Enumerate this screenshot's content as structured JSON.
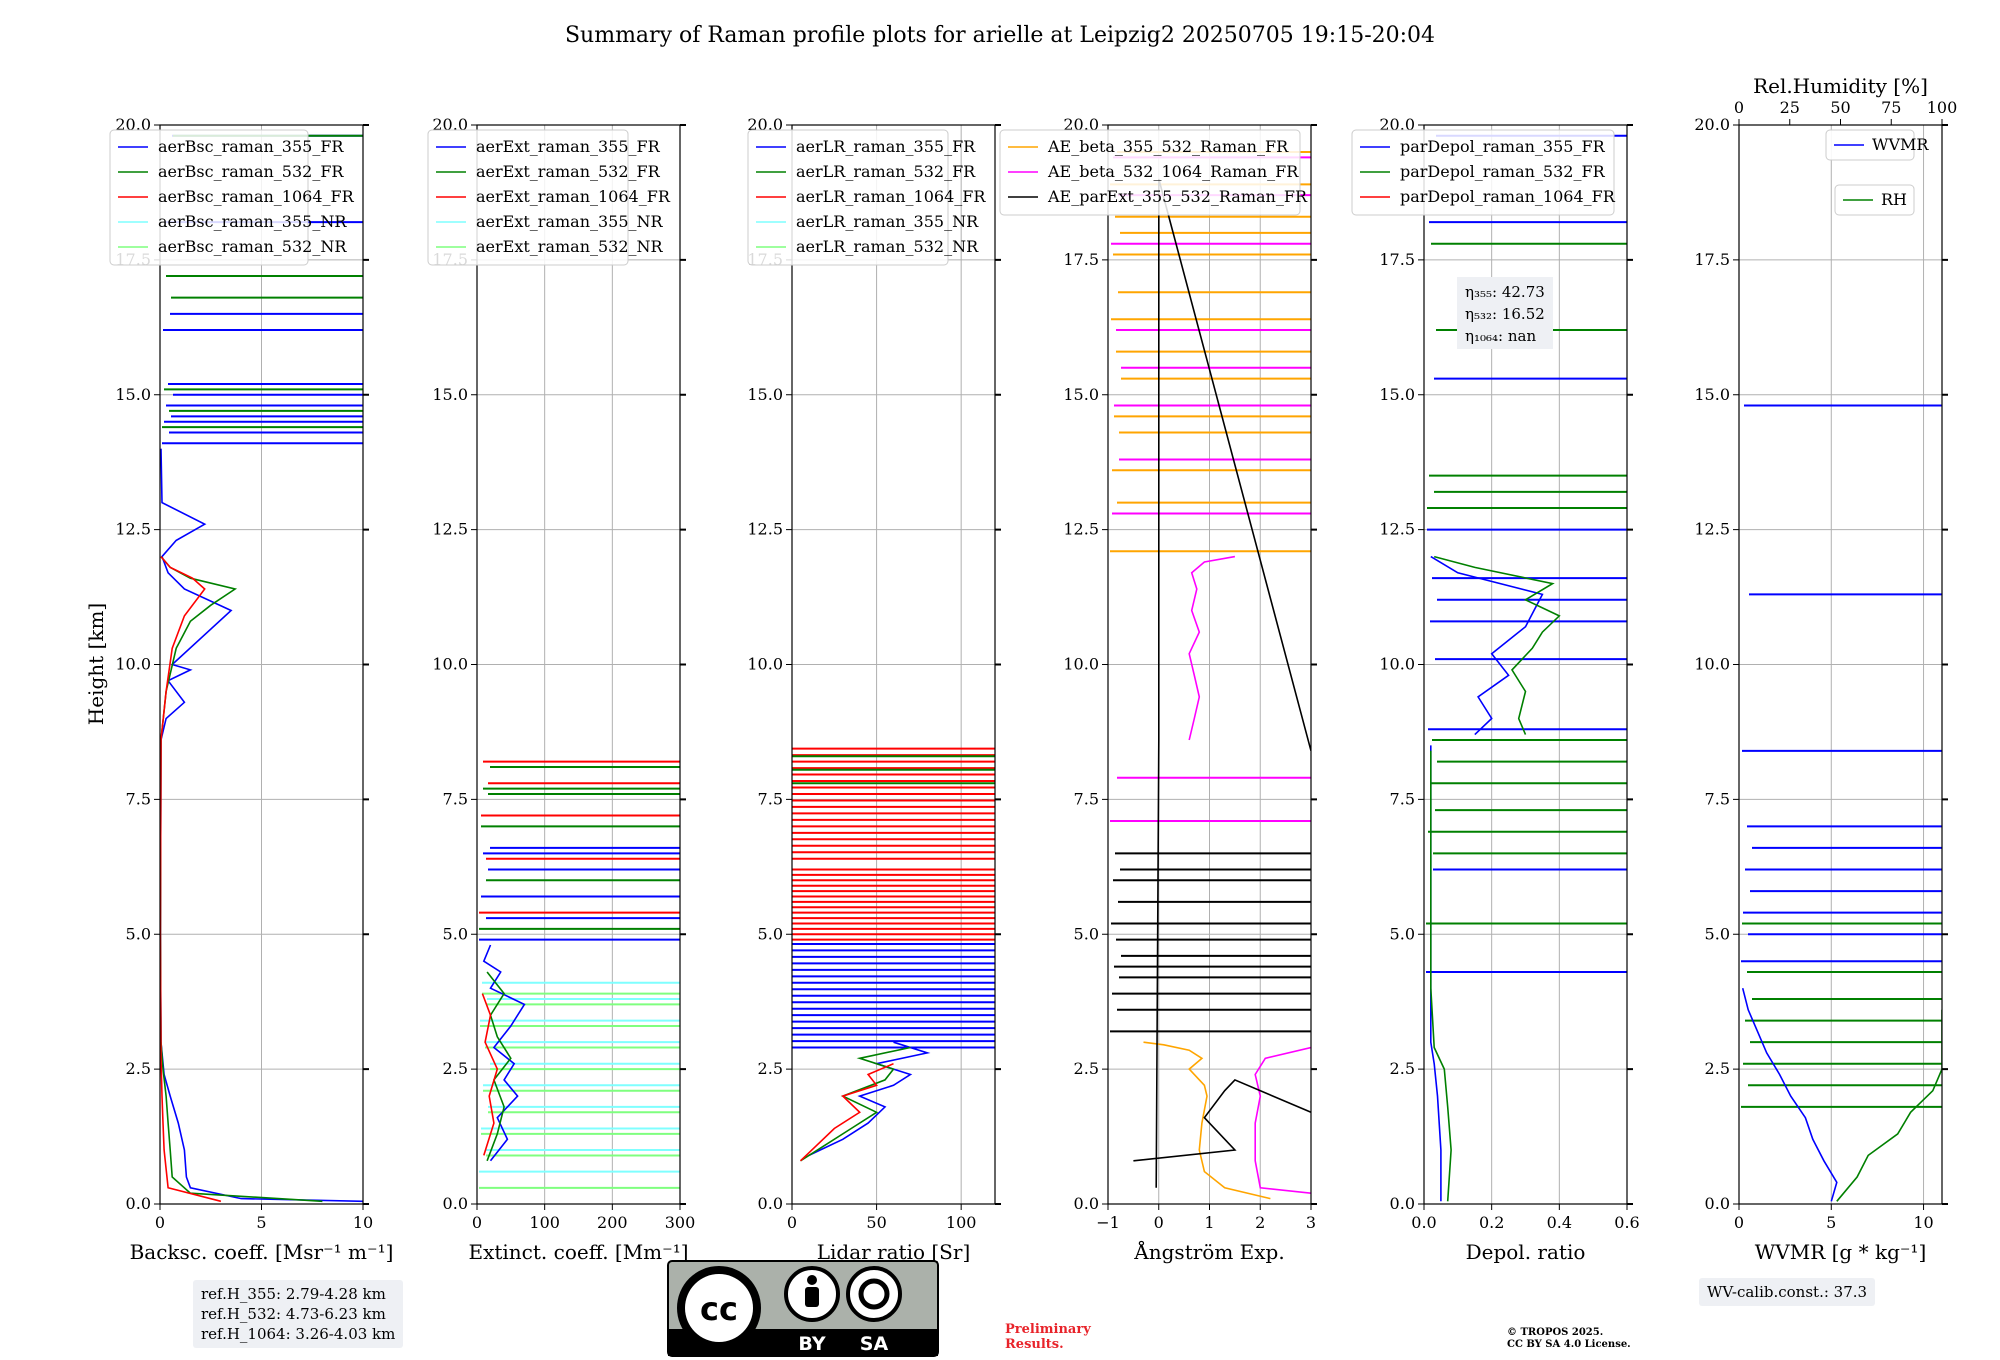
{
  "title": "Summary of Raman profile plots for arielle at Leipzig2 20250705 19:15-20:04",
  "ylabel": "Height [km]",
  "colors": {
    "blue": "#0000ff",
    "green": "#008000",
    "red": "#ff0000",
    "cyan": "#7fffff",
    "lightgreen": "#7fff7f",
    "orange": "#ffa500",
    "magenta": "#ff00ff",
    "black": "#000000"
  },
  "chart_data": [
    {
      "type": "line",
      "id": "bsc",
      "xlabel": "Backsc. coeff. [Msr⁻¹ m⁻¹]",
      "xlim": [
        0,
        10
      ],
      "xticks": [
        "0",
        "5",
        "10"
      ],
      "xtick_values": [
        0,
        5,
        10
      ],
      "ylim": [
        0,
        20
      ],
      "yticks": [
        "0.0",
        "2.5",
        "5.0",
        "7.5",
        "10.0",
        "12.5",
        "15.0",
        "17.5",
        "20.0"
      ],
      "legend": [
        "aerBsc_raman_355_FR",
        "aerBsc_raman_532_FR",
        "aerBsc_raman_1064_FR",
        "aerBsc_raman_355_NR",
        "aerBsc_raman_532_NR"
      ],
      "series": [
        {
          "name": "aerBsc_raman_355_FR",
          "color": "blue",
          "x": [
            10,
            4,
            1.5,
            1.3,
            1.2,
            0.9,
            0.5,
            0.2,
            0.1,
            0.05,
            0.02,
            0.05,
            0.3,
            1.2,
            0.4,
            1.5,
            0.6,
            3.5,
            1.2,
            0.4,
            0.1,
            0.8,
            2.2,
            0.1,
            0.05
          ],
          "y": [
            0.05,
            0.1,
            0.3,
            0.5,
            1,
            1.5,
            2,
            2.4,
            2.8,
            3,
            5,
            8.6,
            9,
            9.3,
            9.7,
            9.9,
            10,
            11,
            11.4,
            11.7,
            12,
            12.3,
            12.6,
            13,
            14
          ]
        },
        {
          "name": "aerBsc_raman_532_FR",
          "color": "green",
          "x": [
            8,
            1.5,
            0.6,
            0.5,
            0.4,
            0.3,
            0.15,
            0.05,
            0.02,
            0.05,
            0.3,
            0.8,
            1.5,
            2.5,
            3.7,
            1.5,
            0.5,
            0.05
          ],
          "y": [
            0.05,
            0.2,
            0.5,
            1,
            1.5,
            2,
            2.5,
            3,
            5,
            8.6,
            9.5,
            10.3,
            10.8,
            11.1,
            11.4,
            11.6,
            11.8,
            12
          ]
        },
        {
          "name": "aerBsc_raman_1064_FR",
          "color": "red",
          "x": [
            3,
            0.4,
            0.2,
            0.15,
            0.1,
            0.05,
            0.02,
            0.05,
            0.3,
            0.6,
            1.2,
            2.2,
            1.6,
            0.5,
            0.05
          ],
          "y": [
            0.05,
            0.3,
            1,
            1.5,
            2,
            2.7,
            5,
            8.6,
            9.5,
            10.3,
            10.9,
            11.4,
            11.6,
            11.8,
            12
          ]
        }
      ],
      "spikes": [
        {
          "color": "blue",
          "h": [
            14.1,
            14.3,
            14.5,
            14.6,
            14.8,
            15,
            15.2,
            16.2,
            16.5,
            18.2,
            19.8
          ]
        },
        {
          "color": "green",
          "h": [
            14.4,
            14.7,
            15.1,
            16.8,
            17.2,
            19.8
          ]
        }
      ]
    },
    {
      "type": "line",
      "id": "ext",
      "xlabel": "Extinct. coeff. [Mm⁻¹]",
      "xlim": [
        0,
        300
      ],
      "xticks": [
        "0",
        "100",
        "200",
        "300"
      ],
      "xtick_values": [
        0,
        100,
        200,
        300
      ],
      "ylim": [
        0,
        20
      ],
      "legend": [
        "aerExt_raman_355_FR",
        "aerExt_raman_532_FR",
        "aerExt_raman_1064_FR",
        "aerExt_raman_355_NR",
        "aerExt_raman_532_NR"
      ],
      "series": [
        {
          "name": "aerExt_raman_355_FR",
          "color": "blue",
          "x": [
            20,
            45,
            30,
            60,
            40,
            55,
            25,
            50,
            70,
            20,
            35,
            10,
            20
          ],
          "y": [
            0.8,
            1.2,
            1.6,
            2.0,
            2.3,
            2.6,
            2.9,
            3.3,
            3.7,
            4.0,
            4.3,
            4.5,
            4.8
          ]
        },
        {
          "name": "aerExt_raman_532_FR",
          "color": "green",
          "x": [
            15,
            30,
            40,
            25,
            50,
            30,
            20,
            40,
            15
          ],
          "y": [
            0.8,
            1.3,
            1.8,
            2.3,
            2.7,
            3.1,
            3.5,
            3.9,
            4.3
          ]
        },
        {
          "name": "aerExt_raman_1064_FR",
          "color": "red",
          "x": [
            10,
            25,
            18,
            30,
            12,
            20,
            8
          ],
          "y": [
            0.9,
            1.5,
            2.0,
            2.5,
            3.0,
            3.5,
            3.9
          ]
        }
      ],
      "spikes": [
        {
          "color": "cyan",
          "h": [
            0.6,
            1.0,
            1.4,
            1.8,
            2.2,
            2.6,
            3.0,
            3.4,
            3.8,
            4.1
          ]
        },
        {
          "color": "lightgreen",
          "h": [
            0.3,
            0.9,
            1.3,
            1.7,
            2.1,
            2.5,
            2.9,
            3.3,
            3.7,
            3.9
          ]
        },
        {
          "color": "blue",
          "h": [
            4.9,
            5.3,
            5.7,
            6.2,
            6.5,
            6.6
          ]
        },
        {
          "color": "green",
          "h": [
            5.1,
            6.0,
            7.0,
            7.6,
            7.7,
            8.1
          ]
        },
        {
          "color": "red",
          "h": [
            5.4,
            6.4,
            7.2,
            7.8,
            8.2
          ]
        }
      ]
    },
    {
      "type": "line",
      "id": "lr",
      "xlabel": "Lidar ratio [Sr]",
      "xlim": [
        0,
        120
      ],
      "xticks": [
        "0",
        "50",
        "100"
      ],
      "xtick_values": [
        0,
        50,
        100
      ],
      "ylim": [
        0,
        20
      ],
      "legend": [
        "aerLR_raman_355_FR",
        "aerLR_raman_532_FR",
        "aerLR_raman_1064_FR",
        "aerLR_raman_355_NR",
        "aerLR_raman_532_NR"
      ],
      "series": [
        {
          "name": "aerLR_raman_355_FR",
          "color": "blue",
          "x": [
            10,
            30,
            45,
            55,
            40,
            60,
            70,
            50,
            80,
            60
          ],
          "y": [
            0.9,
            1.2,
            1.5,
            1.8,
            2.0,
            2.2,
            2.4,
            2.6,
            2.8,
            3.0
          ]
        },
        {
          "name": "aerLR_raman_532_FR",
          "color": "green",
          "x": [
            5,
            20,
            35,
            50,
            30,
            55,
            60,
            40,
            70
          ],
          "y": [
            0.8,
            1.1,
            1.4,
            1.7,
            2.0,
            2.3,
            2.5,
            2.7,
            2.9
          ]
        },
        {
          "name": "aerLR_raman_1064_FR",
          "color": "red",
          "x": [
            5,
            15,
            25,
            40,
            30,
            50,
            45,
            60
          ],
          "y": [
            0.8,
            1.1,
            1.4,
            1.7,
            2.0,
            2.2,
            2.4,
            2.6
          ]
        }
      ],
      "bands": [
        {
          "color": "blue",
          "from": 2.9,
          "to": 4.9,
          "step": 0.12
        },
        {
          "color": "red",
          "from": 4.9,
          "to": 6.2,
          "step": 0.1
        },
        {
          "color": "red",
          "from": 6.4,
          "to": 8.5,
          "step": 0.12
        },
        {
          "color": "green",
          "from": 7.8,
          "to": 8.5,
          "step": 0.25
        }
      ]
    },
    {
      "type": "line",
      "id": "ae",
      "xlabel": "Ångström Exp.",
      "xlim": [
        -1,
        3
      ],
      "xticks": [
        "−1",
        "0",
        "1",
        "2",
        "3"
      ],
      "xtick_values": [
        -1,
        0,
        1,
        2,
        3
      ],
      "ylim": [
        0,
        20
      ],
      "legend": [
        "AE_beta_355_532_Raman_FR",
        "AE_beta_532_1064_Raman_FR",
        "AE_parExt_355_532_Raman_FR"
      ],
      "series": [
        {
          "name": "AE_beta_355_532_Raman_FR",
          "color": "orange",
          "x": [
            2.2,
            1.3,
            0.9,
            0.8,
            0.85,
            0.95,
            0.9,
            0.6,
            0.85,
            0.6,
            0.1,
            -0.3
          ],
          "y": [
            0.1,
            0.3,
            0.6,
            1.0,
            1.5,
            2.0,
            2.2,
            2.5,
            2.7,
            2.85,
            2.95,
            3.0
          ]
        },
        {
          "name": "AE_beta_532_1064_Raman_FR",
          "color": "magenta",
          "x": [
            3,
            2.0,
            1.9,
            1.9,
            2.0,
            1.9,
            2.1,
            3
          ],
          "y": [
            0.2,
            0.3,
            0.8,
            1.5,
            2.0,
            2.4,
            2.7,
            2.9
          ]
        },
        {
          "name": "AE_beta_532_1064_upper",
          "color": "magenta",
          "x": [
            0.6,
            0.7,
            0.8,
            0.7,
            0.6,
            0.8,
            0.65,
            0.75,
            0.65,
            0.9,
            1.5
          ],
          "y": [
            8.6,
            9.0,
            9.4,
            9.8,
            10.2,
            10.6,
            11.0,
            11.4,
            11.7,
            11.9,
            12.0
          ]
        },
        {
          "name": "AE_parExt_355_532_Raman_FR",
          "color": "black",
          "x": [
            -0.05,
            0.0,
            0.0,
            0.0,
            3
          ],
          "y": [
            0.3,
            8.6,
            14,
            19,
            8.4
          ]
        },
        {
          "name": "AE_parExt_low",
          "color": "black",
          "x": [
            -0.5,
            1.5,
            0.9,
            1.3,
            1.5,
            3
          ],
          "y": [
            0.8,
            1.0,
            1.6,
            2.1,
            2.3,
            1.7
          ]
        }
      ],
      "spikes": [
        {
          "color": "black",
          "h": [
            3.2,
            3.6,
            3.9,
            4.2,
            4.4,
            4.6,
            4.9,
            5.2,
            5.6,
            6.0,
            6.2,
            6.5
          ]
        },
        {
          "color": "orange",
          "h": [
            12.1,
            13.0,
            13.6,
            14.3,
            14.6,
            15.3,
            15.8,
            16.4,
            16.9,
            17.6,
            18.0,
            18.3,
            18.9,
            19.5
          ]
        },
        {
          "color": "magenta",
          "h": [
            7.1,
            7.9,
            12.8,
            13.8,
            14.8,
            15.5,
            16.2,
            17.8,
            18.7,
            19.4
          ]
        }
      ]
    },
    {
      "type": "line",
      "id": "dep",
      "xlabel": "Depol. ratio",
      "xlim": [
        0,
        0.6
      ],
      "xticks": [
        "0.0",
        "0.2",
        "0.4",
        "0.6"
      ],
      "xtick_values": [
        0,
        0.2,
        0.4,
        0.6
      ],
      "ylim": [
        0,
        20
      ],
      "legend": [
        "parDepol_raman_355_FR",
        "parDepol_raman_532_FR",
        "parDepol_raman_1064_FR"
      ],
      "series": [
        {
          "name": "parDepol_raman_355_FR",
          "color": "blue",
          "x": [
            0.05,
            0.05,
            0.04,
            0.03,
            0.02,
            0.02,
            0.02
          ],
          "y": [
            0.05,
            1,
            2,
            2.6,
            3,
            4,
            8.5
          ]
        },
        {
          "name": "parDepol_raman_532_FR",
          "color": "green",
          "x": [
            0.07,
            0.08,
            0.07,
            0.06,
            0.03,
            0.02,
            0.02
          ],
          "y": [
            0.05,
            1,
            1.8,
            2.5,
            2.9,
            4,
            8.4
          ]
        },
        {
          "name": "parDepol_355_upper",
          "color": "blue",
          "x": [
            0.15,
            0.2,
            0.16,
            0.25,
            0.2,
            0.3,
            0.35,
            0.1,
            0.02
          ],
          "y": [
            8.7,
            9.0,
            9.4,
            9.8,
            10.2,
            10.7,
            11.3,
            11.7,
            12.0
          ]
        },
        {
          "name": "parDepol_532_upper",
          "color": "green",
          "x": [
            0.3,
            0.28,
            0.3,
            0.26,
            0.32,
            0.35,
            0.4,
            0.3,
            0.38,
            0.15,
            0.03
          ],
          "y": [
            8.7,
            9.0,
            9.5,
            9.9,
            10.3,
            10.6,
            10.9,
            11.2,
            11.5,
            11.8,
            12.0
          ]
        }
      ],
      "spikes": [
        {
          "color": "blue",
          "h": [
            4.3,
            6.2,
            8.8,
            10.1,
            10.8,
            11.2,
            11.6,
            12.5,
            15.3,
            18.2,
            19.8
          ]
        },
        {
          "color": "green",
          "h": [
            5.2,
            6.5,
            6.9,
            7.3,
            7.8,
            8.2,
            8.6,
            12.9,
            13.2,
            13.5,
            16.2,
            17.8
          ]
        }
      ],
      "annotation": [
        "η₃₅₅: 42.73",
        "η₅₃₂: 16.52",
        "η₁₀₆₄: nan"
      ]
    },
    {
      "type": "line",
      "id": "wv",
      "xlabel": "WVMR [g * kg⁻¹]",
      "xlim": [
        0,
        11
      ],
      "xticks": [
        "0",
        "5",
        "10"
      ],
      "xtick_values": [
        0,
        5,
        10
      ],
      "ylim": [
        0,
        20
      ],
      "top_xlabel": "Rel.Humidity [%]",
      "top_xticks": [
        "0",
        "25",
        "50",
        "75",
        "100"
      ],
      "top_xtick_values": [
        0,
        25,
        50,
        75,
        100
      ],
      "legend": [
        "WVMR",
        "RH"
      ],
      "series": [
        {
          "name": "WVMR",
          "color": "blue",
          "x": [
            5,
            5.3,
            4.6,
            4.0,
            3.6,
            2.8,
            2.2,
            1.5,
            1.0,
            0.5,
            0.2
          ],
          "y": [
            0.05,
            0.4,
            0.8,
            1.2,
            1.6,
            2.0,
            2.4,
            2.8,
            3.2,
            3.6,
            4.0
          ]
        },
        {
          "name": "RH",
          "color": "green",
          "x": [
            5.3,
            6.4,
            7,
            8.6,
            9.3,
            10.5,
            11,
            11,
            11
          ],
          "y": [
            0.05,
            0.5,
            0.9,
            1.3,
            1.7,
            2.1,
            2.5,
            3.0,
            3.6
          ]
        }
      ],
      "spikes": [
        {
          "color": "blue",
          "h": [
            4.5,
            5.0,
            5.4,
            5.8,
            6.2,
            6.6,
            7.0,
            8.4,
            11.3,
            14.8
          ]
        },
        {
          "color": "green",
          "h": [
            1.8,
            2.2,
            2.6,
            3.0,
            3.4,
            3.8,
            4.3,
            5.2
          ]
        }
      ]
    }
  ],
  "refs": {
    "line1": "ref.H_355: 2.79-4.28 km",
    "line2": "ref.H_532: 4.73-6.23 km",
    "line3": "ref.H_1064: 3.26-4.03 km"
  },
  "wv_calib": "WV-calib.const.: 37.3",
  "license": {
    "cc": "cc",
    "by": "BY",
    "sa": "SA"
  },
  "preliminary": {
    "line1": "Preliminary",
    "line2": "Results."
  },
  "copyright": {
    "line1": "© TROPOS 2025.",
    "line2": "CC BY SA 4.0 License."
  }
}
